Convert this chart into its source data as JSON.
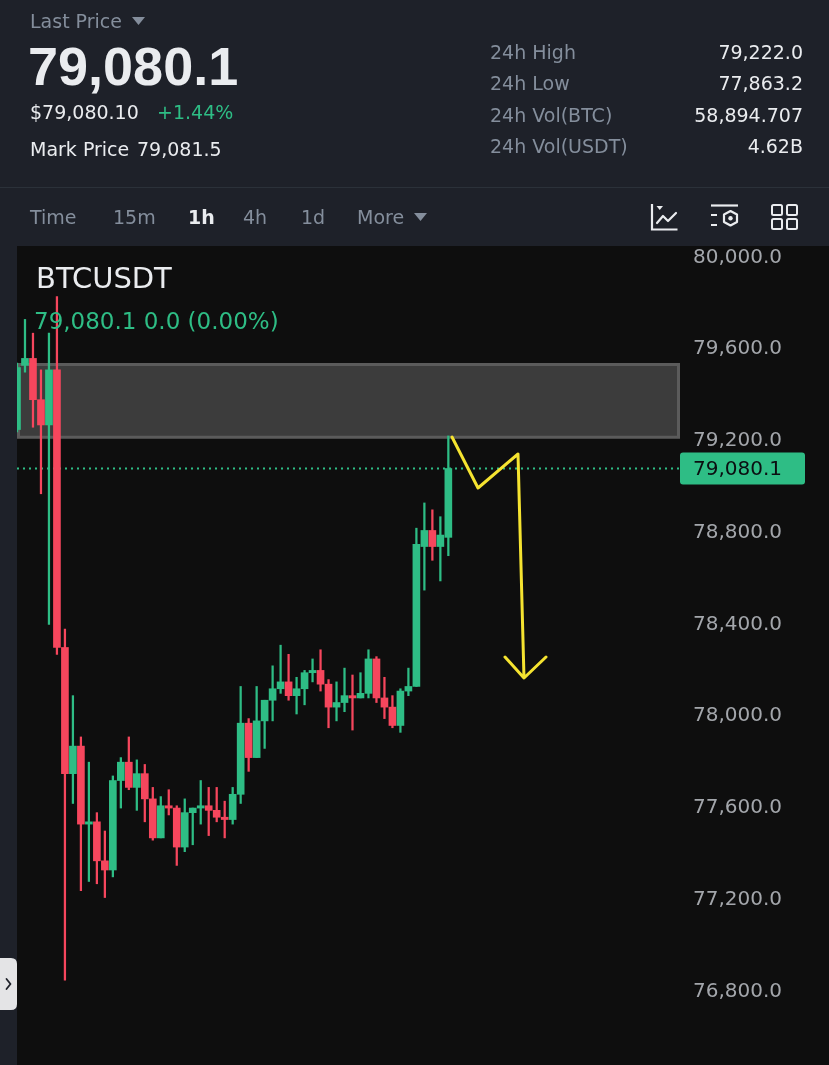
{
  "chart_data": [
    {
      "type": "other",
      "annotations": [
        "Last Price",
        "79,080.1",
        "$79,080.10",
        "+1.44%",
        "Mark Price",
        "79,081.5",
        "24h High",
        "79,222.0",
        "24h Low",
        "77,863.2",
        "24h Vol(BTC)",
        "58,894.707",
        "24h Vol(USDT)",
        "4.62B",
        "Time",
        "15m",
        "1h",
        "4h",
        "1d",
        "More"
      ]
    },
    {
      "type": "candlestick",
      "title": "BTCUSDT",
      "categories": [
        null,
        null,
        null,
        null,
        null,
        null,
        null,
        null,
        null,
        null,
        null,
        null,
        null,
        null,
        null,
        null,
        null,
        null,
        null,
        null,
        null,
        null,
        null,
        null,
        null,
        null,
        null,
        null,
        null,
        null,
        null,
        null,
        null,
        null,
        null,
        null,
        null,
        null,
        null,
        null,
        null,
        null,
        null,
        null,
        null,
        null,
        null,
        null,
        null,
        null,
        null,
        null,
        null,
        null,
        null,
        null,
        null,
        null,
        null,
        null,
        null,
        null,
        null,
        null,
        null,
        null,
        null,
        null,
        null,
        null,
        null,
        null,
        null,
        null,
        null,
        null,
        null,
        null,
        null,
        null,
        null,
        null,
        null,
        null
      ],
      "ohlc": [
        [
          79250,
          79540,
          79240,
          79520
        ],
        [
          79530,
          79730,
          79500,
          79560
        ],
        [
          79560,
          79670,
          79260,
          79380
        ],
        [
          79380,
          79510,
          78970,
          79270
        ],
        [
          79270,
          79670,
          78400,
          79510
        ],
        [
          79510,
          79830,
          78270,
          78300
        ],
        [
          78300,
          78380,
          76850,
          77750
        ],
        [
          77750,
          78090,
          77620,
          77870
        ],
        [
          77870,
          77910,
          77240,
          77530
        ],
        [
          77530,
          77800,
          77280,
          77540
        ],
        [
          77540,
          77580,
          77270,
          77370
        ],
        [
          77370,
          77500,
          77210,
          77330
        ],
        [
          77330,
          77740,
          77300,
          77720
        ],
        [
          77720,
          77820,
          77600,
          77800
        ],
        [
          77800,
          77910,
          77680,
          77690
        ],
        [
          77690,
          77810,
          77590,
          77750
        ],
        [
          77750,
          77790,
          77540,
          77640
        ],
        [
          77640,
          77690,
          77460,
          77470
        ],
        [
          77470,
          77650,
          77470,
          77610
        ],
        [
          77610,
          77680,
          77570,
          77600
        ],
        [
          77600,
          77610,
          77350,
          77430
        ],
        [
          77430,
          77640,
          77410,
          77580
        ],
        [
          77580,
          77600,
          77440,
          77600
        ],
        [
          77600,
          77720,
          77530,
          77610
        ],
        [
          77610,
          77690,
          77480,
          77590
        ],
        [
          77590,
          77690,
          77540,
          77560
        ],
        [
          77560,
          77630,
          77470,
          77550
        ],
        [
          77550,
          77690,
          77530,
          77660
        ],
        [
          77660,
          78130,
          77620,
          77970
        ],
        [
          77970,
          77990,
          77760,
          77820
        ],
        [
          77820,
          78130,
          77820,
          77980
        ],
        [
          77980,
          78070,
          77860,
          78070
        ],
        [
          78070,
          78220,
          77980,
          78120
        ],
        [
          78120,
          78310,
          78100,
          78150
        ],
        [
          78150,
          78270,
          78070,
          78090
        ],
        [
          78090,
          78170,
          78010,
          78120
        ],
        [
          78120,
          78200,
          78050,
          78190
        ],
        [
          78190,
          78250,
          78150,
          78200
        ],
        [
          78200,
          78290,
          78110,
          78140
        ],
        [
          78140,
          78160,
          77950,
          78040
        ],
        [
          78040,
          78150,
          77980,
          78060
        ],
        [
          78060,
          78210,
          78020,
          78090
        ],
        [
          78090,
          78180,
          77940,
          78080
        ],
        [
          78080,
          78190,
          78080,
          78100
        ],
        [
          78100,
          78290,
          78080,
          78250
        ],
        [
          78250,
          78260,
          78060,
          78080
        ],
        [
          78080,
          78170,
          77990,
          78040
        ],
        [
          78040,
          78090,
          77950,
          77960
        ],
        [
          77960,
          78120,
          77930,
          78110
        ],
        [
          78110,
          78210,
          78090,
          78130
        ],
        [
          78130,
          78820,
          78130,
          78750
        ],
        [
          78740,
          78930,
          78550,
          78810
        ],
        [
          78810,
          78900,
          78680,
          78740
        ],
        [
          78740,
          78870,
          78590,
          78790
        ],
        [
          78780,
          79222,
          78700,
          79080.1
        ],
        null,
        null,
        null,
        null,
        null,
        null,
        null,
        null,
        null,
        null,
        null,
        null,
        null,
        null,
        null,
        null,
        null,
        null,
        null,
        null,
        null,
        null,
        null,
        null,
        null,
        null,
        null,
        null,
        null
      ],
      "colors": [
        "#2ebd85",
        "#2ebd85",
        "#f6465d",
        "#f6465d",
        "#2ebd85",
        "#f6465d",
        "#f6465d",
        "#2ebd85",
        "#f6465d",
        "#2ebd85",
        "#f6465d",
        "#f6465d",
        "#2ebd85",
        "#2ebd85",
        "#f6465d",
        "#2ebd85",
        "#f6465d",
        "#f6465d",
        "#2ebd85",
        "#f6465d",
        "#f6465d",
        "#2ebd85",
        "#2ebd85",
        "#2ebd85",
        "#f6465d",
        "#f6465d",
        "#f6465d",
        "#2ebd85",
        "#2ebd85",
        "#f6465d",
        "#2ebd85",
        "#2ebd85",
        "#2ebd85",
        "#2ebd85",
        "#f6465d",
        "#2ebd85",
        "#2ebd85",
        "#2ebd85",
        "#f6465d",
        "#f6465d",
        "#2ebd85",
        "#2ebd85",
        "#f6465d",
        "#2ebd85",
        "#2ebd85",
        "#f6465d",
        "#f6465d",
        "#f6465d",
        "#2ebd85",
        "#2ebd85",
        "#2ebd85",
        "#2ebd85",
        "#f6465d",
        "#2ebd85",
        "#2ebd85",
        null,
        null,
        null,
        null,
        null,
        null,
        null,
        null,
        null,
        null,
        null,
        null,
        null,
        null,
        null,
        null,
        null,
        null,
        null,
        null,
        null,
        null,
        null,
        null,
        null,
        null,
        null,
        null,
        null
      ],
      "ylim": [
        76480,
        80050
      ],
      "yticks": [
        {
          "value": 76800,
          "label": "76,800.0"
        },
        {
          "value": 77200,
          "label": "77,200.0"
        },
        {
          "value": 77600,
          "label": "77,600.0"
        },
        {
          "value": 78000,
          "label": "78,000.0"
        },
        {
          "value": 78400,
          "label": "78,400.0"
        },
        {
          "value": 78800,
          "label": "78,800.0"
        },
        {
          "value": 79200,
          "label": "79,200.0"
        },
        {
          "value": 79600,
          "label": "79,600.0"
        },
        {
          "value": 80000,
          "label": "80,000.0"
        }
      ],
      "tick_labels": "y",
      "ref_lines": [
        {
          "axis": "y",
          "value": 79080.1,
          "label": "79,080.1",
          "color": "#2ebd85",
          "line_style": "dotted"
        }
      ],
      "bands": [
        {
          "axis": "y",
          "from": 79210,
          "to": 79540,
          "color": "#3c3c3c"
        }
      ],
      "annotations": [
        "79,080.1 0.0 (0.00%)"
      ]
    }
  ]
}
